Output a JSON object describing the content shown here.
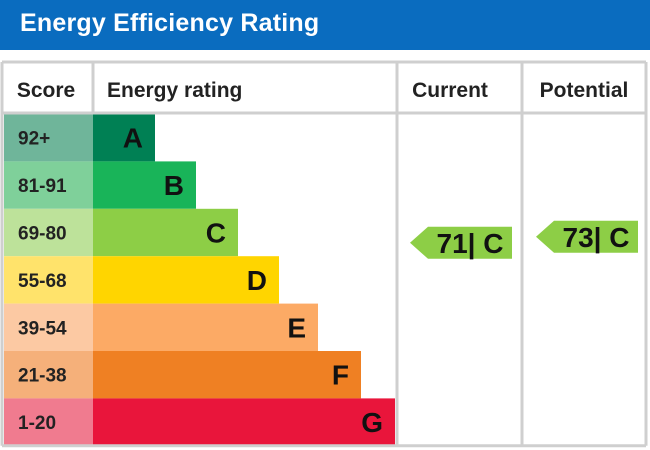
{
  "header": {
    "title": "Energy Efficiency Rating"
  },
  "chart_data": {
    "type": "bar",
    "title": "Energy Efficiency Rating",
    "columns": {
      "score": "Score",
      "rating": "Energy rating",
      "current": "Current",
      "potential": "Potential"
    },
    "bands": [
      {
        "letter": "A",
        "range": "92+",
        "color": "#008054",
        "label_bg": "#6fb59a"
      },
      {
        "letter": "B",
        "range": "81-91",
        "color": "#19b459",
        "label_bg": "#7fd09a"
      },
      {
        "letter": "C",
        "range": "69-80",
        "color": "#8dce46",
        "label_bg": "#bde29a"
      },
      {
        "letter": "D",
        "range": "55-68",
        "color": "#ffd500",
        "label_bg": "#ffe36b"
      },
      {
        "letter": "E",
        "range": "39-54",
        "color": "#fcaa65",
        "label_bg": "#fcc9a3"
      },
      {
        "letter": "F",
        "range": "21-38",
        "color": "#ef8023",
        "label_bg": "#f5b07a"
      },
      {
        "letter": "G",
        "range": "1-20",
        "color": "#e9153b",
        "label_bg": "#f07b8f"
      }
    ],
    "current": {
      "value": 71,
      "letter": "C",
      "text": "71| C",
      "color": "#8dce46"
    },
    "potential": {
      "value": 73,
      "letter": "C",
      "text": "73| C",
      "color": "#8dce46"
    }
  }
}
